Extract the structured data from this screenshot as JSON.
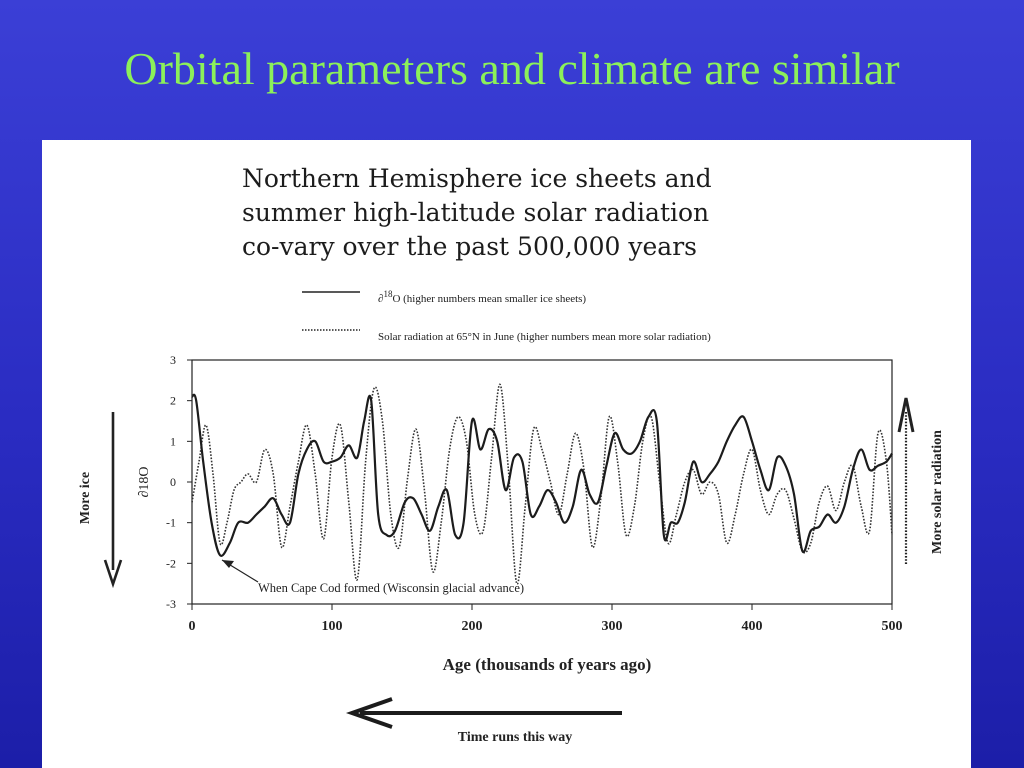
{
  "slide": {
    "title": "Orbital parameters and climate are similar"
  },
  "figure": {
    "title_lines": [
      "Northern Hemisphere ice sheets and",
      "summer high-latitude solar radiation",
      "co-vary over the past 500,000 years"
    ],
    "annotation": "When Cape Cod formed (Wisconsin glacial advance)",
    "left_arrow_label": "More ice",
    "right_arrow_label": "More solar radiation",
    "time_arrow_label": "Time runs this way"
  },
  "chart_data": {
    "type": "line",
    "xlabel": "Age (thousands of years ago)",
    "ylabel": "∂18O",
    "xlim": [
      0,
      500
    ],
    "ylim": [
      -3,
      3
    ],
    "x_ticks": [
      "0",
      "100",
      "200",
      "300",
      "400",
      "500"
    ],
    "y_ticks": [
      "3",
      "2",
      "1",
      "0",
      "-1",
      "-2",
      "-3"
    ],
    "legend": [
      {
        "label_sup": "18",
        "label_pre": "∂",
        "label": "O (higher numbers mean smaller ice sheets)",
        "style": "solid"
      },
      {
        "label": "Solar radiation at 65°N in June  (higher numbers mean more solar radiation)",
        "style": "dotted"
      }
    ],
    "series": [
      {
        "style": "solid",
        "x": [
          0,
          3,
          8,
          14,
          20,
          27,
          33,
          40,
          46,
          52,
          58,
          64,
          70,
          76,
          82,
          88,
          94,
          100,
          106,
          112,
          118,
          123,
          128,
          133,
          139,
          145,
          152,
          158,
          164,
          170,
          176,
          182,
          188,
          194,
          200,
          206,
          212,
          218,
          224,
          230,
          236,
          242,
          248,
          254,
          260,
          266,
          272,
          278,
          284,
          290,
          296,
          302,
          308,
          314,
          320,
          326,
          332,
          337,
          342,
          347,
          352,
          358,
          364,
          370,
          376,
          382,
          388,
          394,
          400,
          406,
          412,
          418,
          424,
          430,
          436,
          442,
          448,
          454,
          460,
          466,
          472,
          478,
          484,
          490,
          496,
          500
        ],
        "y": [
          2.1,
          2.0,
          0.5,
          -1.0,
          -1.8,
          -1.5,
          -1.0,
          -1.0,
          -0.8,
          -0.6,
          -0.4,
          -0.8,
          -1.0,
          0.2,
          0.8,
          1.0,
          0.5,
          0.5,
          0.6,
          0.9,
          0.6,
          1.5,
          2.0,
          -0.8,
          -1.3,
          -1.2,
          -0.5,
          -0.4,
          -0.8,
          -1.2,
          -0.6,
          -0.2,
          -1.3,
          -1.0,
          1.5,
          0.8,
          1.3,
          1.0,
          -0.2,
          0.6,
          0.5,
          -0.8,
          -0.6,
          -0.2,
          -0.5,
          -1.0,
          -0.6,
          0.3,
          -0.3,
          -0.5,
          0.4,
          1.2,
          0.8,
          0.7,
          1.0,
          1.6,
          1.5,
          -1.3,
          -1.0,
          -1.0,
          -0.5,
          0.5,
          0.0,
          0.2,
          0.5,
          1.0,
          1.4,
          1.6,
          1.0,
          0.3,
          -0.2,
          0.6,
          0.4,
          -0.3,
          -1.7,
          -1.2,
          -1.1,
          -0.8,
          -1.0,
          -0.6,
          0.3,
          0.8,
          0.3,
          0.4,
          0.5,
          0.7
        ]
      },
      {
        "style": "dotted",
        "x": [
          0,
          5,
          10,
          15,
          20,
          25,
          30,
          35,
          40,
          46,
          52,
          58,
          64,
          70,
          76,
          82,
          88,
          94,
          100,
          106,
          112,
          118,
          124,
          130,
          136,
          142,
          148,
          154,
          160,
          166,
          172,
          178,
          184,
          190,
          196,
          202,
          208,
          214,
          220,
          226,
          232,
          238,
          244,
          250,
          256,
          262,
          268,
          274,
          280,
          286,
          292,
          298,
          304,
          310,
          316,
          322,
          328,
          334,
          340,
          346,
          352,
          358,
          364,
          370,
          376,
          382,
          388,
          394,
          400,
          406,
          412,
          418,
          424,
          430,
          436,
          442,
          448,
          454,
          460,
          466,
          472,
          478,
          484,
          490,
          496,
          500
        ],
        "y": [
          -0.5,
          0.5,
          1.4,
          0.2,
          -1.5,
          -1.0,
          -0.2,
          0.0,
          0.2,
          0.0,
          0.8,
          0.2,
          -1.6,
          -0.6,
          0.5,
          1.4,
          0.2,
          -1.4,
          0.6,
          1.4,
          -0.5,
          -2.4,
          0.5,
          2.3,
          1.5,
          -0.8,
          -1.6,
          0.1,
          1.3,
          -0.2,
          -2.2,
          -1.0,
          0.8,
          1.6,
          1.0,
          -0.8,
          -1.2,
          0.6,
          2.4,
          0.3,
          -2.5,
          -0.6,
          1.3,
          0.8,
          0.0,
          -0.8,
          0.2,
          1.2,
          0.3,
          -1.6,
          -0.4,
          1.6,
          0.5,
          -1.3,
          -0.6,
          1.0,
          1.6,
          0.0,
          -1.5,
          -0.8,
          0.0,
          0.3,
          -0.3,
          0.0,
          -0.3,
          -1.5,
          -0.8,
          0.2,
          0.8,
          -0.2,
          -0.8,
          -0.3,
          -0.2,
          -0.9,
          -1.7,
          -1.5,
          -0.5,
          -0.1,
          -0.7,
          0.0,
          0.4,
          -0.6,
          -1.2,
          1.2,
          0.5,
          -1.3
        ]
      }
    ]
  }
}
